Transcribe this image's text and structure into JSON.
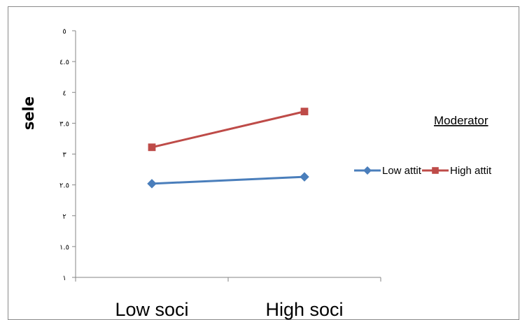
{
  "chart_data": {
    "type": "line",
    "title": "",
    "ylabel": "sele",
    "xlabel": "",
    "categories": [
      "Low soci",
      "High soci"
    ],
    "yticks": [
      {
        "value": 1,
        "label": "١"
      },
      {
        "value": 1.5,
        "label": "١.٥"
      },
      {
        "value": 2,
        "label": "٢"
      },
      {
        "value": 2.5,
        "label": "٢.٥"
      },
      {
        "value": 3,
        "label": "٣"
      },
      {
        "value": 3.5,
        "label": "٣.٥"
      },
      {
        "value": 4,
        "label": "٤"
      },
      {
        "value": 4.5,
        "label": "٤.٥"
      },
      {
        "value": 5,
        "label": "٥"
      }
    ],
    "ylim": [
      1,
      5
    ],
    "grid": false,
    "legend_title": "Moderator",
    "legend_position": "right",
    "series": [
      {
        "name": "Low attit",
        "values": [
          2.52,
          2.63
        ],
        "color": "#4A7EBB",
        "marker": "diamond"
      },
      {
        "name": "High attit",
        "values": [
          3.11,
          3.69
        ],
        "color": "#BE4B48",
        "marker": "square"
      }
    ]
  }
}
